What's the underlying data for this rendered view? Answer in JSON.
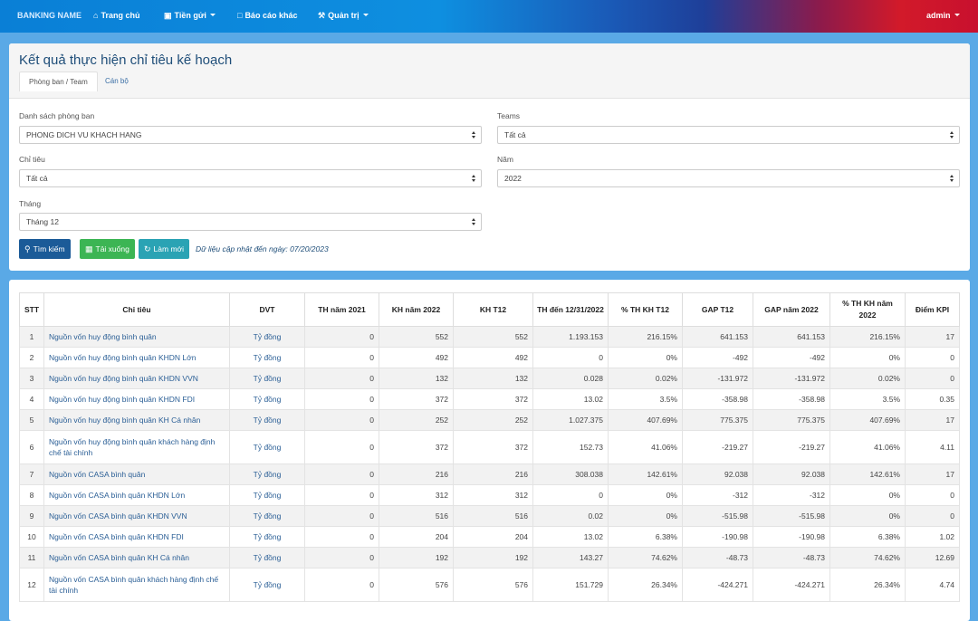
{
  "nav": {
    "brand": "BANKING NAME",
    "home": "Trang chủ",
    "deposit": "Tiền gửi",
    "reports": "Báo cáo khác",
    "admin_menu": "Quản trị",
    "user": "admin"
  },
  "page": {
    "title": "Kết quả thực hiện chỉ tiêu kế hoạch",
    "tab_dept": "Phòng ban / Team",
    "tab_staff": "Cán bộ"
  },
  "filters": {
    "dept_label": "Danh sách phòng ban",
    "dept_value": "PHONG DICH VU KHACH HANG",
    "teams_label": "Teams",
    "teams_value": "Tất cả",
    "target_label": "Chỉ tiêu",
    "target_value": "Tất cả",
    "year_label": "Năm",
    "year_value": "2022",
    "month_label": "Tháng",
    "month_value": "Tháng 12"
  },
  "actions": {
    "search": "Tìm kiếm",
    "download": "Tải xuống",
    "refresh": "Làm mới",
    "update_note": "Dữ liệu cập nhật đến ngày: 07/20/2023"
  },
  "table": {
    "headers": [
      "STT",
      "Chỉ tiêu",
      "DVT",
      "TH năm 2021",
      "KH năm 2022",
      "KH T12",
      "TH đến 12/31/2022",
      "% TH KH T12",
      "GAP T12",
      "GAP năm 2022",
      "% TH KH năm 2022",
      "Điểm KPI"
    ],
    "rows": [
      [
        "1",
        "Nguồn vốn huy động bình quân",
        "Tỷ đồng",
        "0",
        "552",
        "552",
        "1.193.153",
        "216.15%",
        "641.153",
        "641.153",
        "216.15%",
        "17"
      ],
      [
        "2",
        "Nguồn vốn huy động bình quân KHDN Lớn",
        "Tỷ đồng",
        "0",
        "492",
        "492",
        "0",
        "0%",
        "-492",
        "-492",
        "0%",
        "0"
      ],
      [
        "3",
        "Nguồn vốn huy động bình quân KHDN VVN",
        "Tỷ đồng",
        "0",
        "132",
        "132",
        "0.028",
        "0.02%",
        "-131.972",
        "-131.972",
        "0.02%",
        "0"
      ],
      [
        "4",
        "Nguồn vốn huy động bình quân KHDN FDI",
        "Tỷ đồng",
        "0",
        "372",
        "372",
        "13.02",
        "3.5%",
        "-358.98",
        "-358.98",
        "3.5%",
        "0.35"
      ],
      [
        "5",
        "Nguồn vốn huy động bình quân KH Cá nhân",
        "Tỷ đồng",
        "0",
        "252",
        "252",
        "1.027.375",
        "407.69%",
        "775.375",
        "775.375",
        "407.69%",
        "17"
      ],
      [
        "6",
        "Nguồn vốn huy động bình quân khách hàng định chế tài chính",
        "Tỷ đồng",
        "0",
        "372",
        "372",
        "152.73",
        "41.06%",
        "-219.27",
        "-219.27",
        "41.06%",
        "4.11"
      ],
      [
        "7",
        "Nguồn vốn CASA bình quân",
        "Tỷ đồng",
        "0",
        "216",
        "216",
        "308.038",
        "142.61%",
        "92.038",
        "92.038",
        "142.61%",
        "17"
      ],
      [
        "8",
        "Nguồn vốn CASA bình quân KHDN Lớn",
        "Tỷ đồng",
        "0",
        "312",
        "312",
        "0",
        "0%",
        "-312",
        "-312",
        "0%",
        "0"
      ],
      [
        "9",
        "Nguồn vốn CASA bình quân KHDN VVN",
        "Tỷ đồng",
        "0",
        "516",
        "516",
        "0.02",
        "0%",
        "-515.98",
        "-515.98",
        "0%",
        "0"
      ],
      [
        "10",
        "Nguồn vốn CASA bình quân KHDN FDI",
        "Tỷ đồng",
        "0",
        "204",
        "204",
        "13.02",
        "6.38%",
        "-190.98",
        "-190.98",
        "6.38%",
        "1.02"
      ],
      [
        "11",
        "Nguồn vốn CASA bình quân KH Cá nhân",
        "Tỷ đồng",
        "0",
        "192",
        "192",
        "143.27",
        "74.62%",
        "-48.73",
        "-48.73",
        "74.62%",
        "12.69"
      ],
      [
        "12",
        "Nguồn vốn CASA bình quân khách hàng định chế tài chính",
        "Tỷ đồng",
        "0",
        "576",
        "576",
        "151.729",
        "26.34%",
        "-424.271",
        "-424.271",
        "26.34%",
        "4.74"
      ]
    ]
  }
}
